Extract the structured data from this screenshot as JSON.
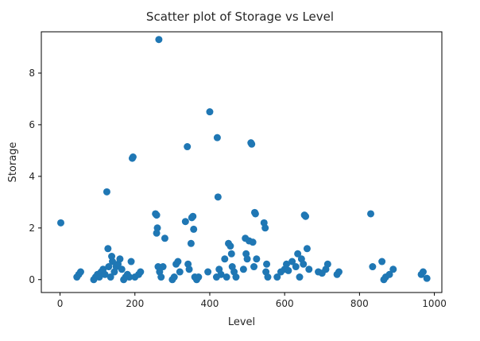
{
  "chart_data": {
    "type": "scatter",
    "title": "Scatter plot of Storage vs Level",
    "xlabel": "Level",
    "ylabel": "Storage",
    "xlim": [
      -50,
      1020
    ],
    "ylim": [
      -0.5,
      9.6
    ],
    "xticks": [
      0,
      200,
      400,
      600,
      800,
      1000
    ],
    "yticks": [
      0,
      2,
      4,
      6,
      8
    ],
    "grid": false,
    "legend": "none",
    "marker_color": "#1f77b4",
    "series": [
      {
        "points": [
          [
            2,
            2.2
          ],
          [
            45,
            0.1
          ],
          [
            50,
            0.2
          ],
          [
            55,
            0.3
          ],
          [
            90,
            0.0
          ],
          [
            95,
            0.1
          ],
          [
            100,
            0.2
          ],
          [
            105,
            0.1
          ],
          [
            110,
            0.3
          ],
          [
            115,
            0.4
          ],
          [
            120,
            0.2
          ],
          [
            125,
            3.4
          ],
          [
            128,
            1.2
          ],
          [
            130,
            0.5
          ],
          [
            135,
            0.1
          ],
          [
            138,
            0.9
          ],
          [
            140,
            0.7
          ],
          [
            145,
            0.3
          ],
          [
            150,
            0.5
          ],
          [
            155,
            0.6
          ],
          [
            160,
            0.8
          ],
          [
            165,
            0.4
          ],
          [
            170,
            0.0
          ],
          [
            175,
            0.1
          ],
          [
            180,
            0.2
          ],
          [
            185,
            0.1
          ],
          [
            190,
            0.7
          ],
          [
            193,
            4.7
          ],
          [
            195,
            4.75
          ],
          [
            200,
            0.1
          ],
          [
            210,
            0.2
          ],
          [
            215,
            0.3
          ],
          [
            255,
            2.55
          ],
          [
            258,
            2.5
          ],
          [
            258,
            1.8
          ],
          [
            260,
            2.0
          ],
          [
            262,
            0.5
          ],
          [
            264,
            9.3
          ],
          [
            266,
            0.3
          ],
          [
            270,
            0.1
          ],
          [
            275,
            0.5
          ],
          [
            280,
            1.6
          ],
          [
            300,
            0.0
          ],
          [
            305,
            0.1
          ],
          [
            310,
            0.6
          ],
          [
            315,
            0.7
          ],
          [
            320,
            0.3
          ],
          [
            335,
            2.25
          ],
          [
            340,
            5.15
          ],
          [
            342,
            0.6
          ],
          [
            345,
            0.4
          ],
          [
            350,
            1.4
          ],
          [
            352,
            2.4
          ],
          [
            355,
            2.45
          ],
          [
            357,
            1.95
          ],
          [
            360,
            0.1
          ],
          [
            365,
            0.0
          ],
          [
            370,
            0.1
          ],
          [
            395,
            0.3
          ],
          [
            400,
            6.5
          ],
          [
            418,
            0.1
          ],
          [
            420,
            5.5
          ],
          [
            422,
            3.2
          ],
          [
            425,
            0.4
          ],
          [
            430,
            0.2
          ],
          [
            440,
            0.8
          ],
          [
            445,
            0.1
          ],
          [
            450,
            1.4
          ],
          [
            455,
            1.3
          ],
          [
            458,
            1.0
          ],
          [
            460,
            0.5
          ],
          [
            465,
            0.3
          ],
          [
            470,
            0.1
          ],
          [
            490,
            0.4
          ],
          [
            495,
            1.6
          ],
          [
            497,
            1.0
          ],
          [
            500,
            0.8
          ],
          [
            505,
            1.5
          ],
          [
            510,
            5.3
          ],
          [
            512,
            5.25
          ],
          [
            515,
            1.45
          ],
          [
            518,
            0.5
          ],
          [
            520,
            2.6
          ],
          [
            522,
            2.55
          ],
          [
            525,
            0.8
          ],
          [
            545,
            2.2
          ],
          [
            548,
            2.0
          ],
          [
            550,
            0.3
          ],
          [
            552,
            0.6
          ],
          [
            555,
            0.1
          ],
          [
            580,
            0.1
          ],
          [
            590,
            0.3
          ],
          [
            600,
            0.4
          ],
          [
            605,
            0.6
          ],
          [
            610,
            0.35
          ],
          [
            620,
            0.7
          ],
          [
            630,
            0.5
          ],
          [
            635,
            1.0
          ],
          [
            640,
            0.1
          ],
          [
            645,
            0.8
          ],
          [
            650,
            0.6
          ],
          [
            653,
            2.5
          ],
          [
            656,
            2.45
          ],
          [
            660,
            1.2
          ],
          [
            665,
            0.4
          ],
          [
            690,
            0.3
          ],
          [
            700,
            0.25
          ],
          [
            710,
            0.4
          ],
          [
            715,
            0.6
          ],
          [
            740,
            0.2
          ],
          [
            745,
            0.3
          ],
          [
            830,
            2.55
          ],
          [
            835,
            0.5
          ],
          [
            860,
            0.7
          ],
          [
            865,
            0.0
          ],
          [
            870,
            0.1
          ],
          [
            880,
            0.2
          ],
          [
            890,
            0.4
          ],
          [
            965,
            0.2
          ],
          [
            970,
            0.3
          ],
          [
            980,
            0.05
          ]
        ]
      }
    ]
  }
}
